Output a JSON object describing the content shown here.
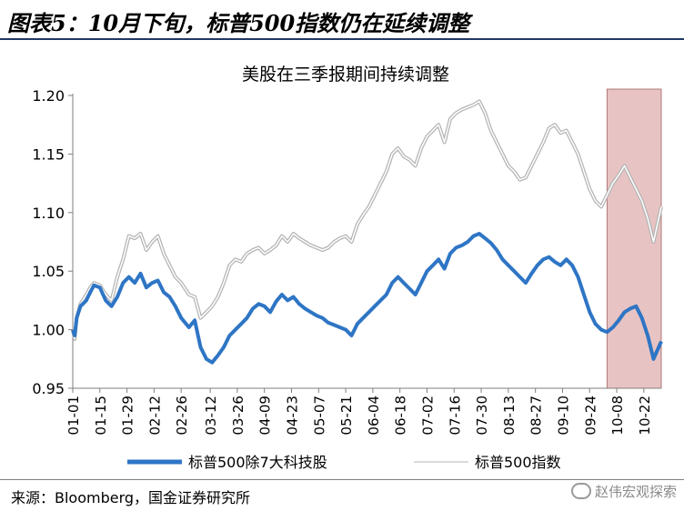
{
  "figure_title": "图表5：10月下旬，标普500指数仍在延续调整",
  "source": "来源：Bloomberg，国金证券研究所",
  "watermark": "赵伟宏观探索",
  "chart_data": {
    "type": "line",
    "title": "美股在三季报期间持续调整",
    "xlabel": "",
    "ylabel": "",
    "ylim": [
      0.95,
      1.2
    ],
    "yticks": [
      0.95,
      1.0,
      1.05,
      1.1,
      1.15,
      1.2
    ],
    "ytick_labels": [
      "0.95",
      "1.00",
      "1.05",
      "1.10",
      "1.15",
      "1.20"
    ],
    "x_tick_labels": [
      "01-01",
      "01-15",
      "01-29",
      "02-12",
      "02-26",
      "03-12",
      "03-26",
      "04-09",
      "04-23",
      "05-07",
      "05-21",
      "06-04",
      "06-18",
      "07-02",
      "07-16",
      "07-30",
      "08-13",
      "08-27",
      "09-10",
      "09-24",
      "10-08",
      "10-22"
    ],
    "x_start": "01-01",
    "x_end": "10-31",
    "highlight": {
      "from": "10-03",
      "to": "10-31",
      "color": "#e8c3c3"
    },
    "legend_position": "bottom",
    "grid": false,
    "series": [
      {
        "name": "标普500除7大科技股",
        "color": "#2e75c5",
        "x": [
          "01-01",
          "01-02",
          "01-03",
          "01-05",
          "01-08",
          "01-10",
          "01-12",
          "01-15",
          "01-18",
          "01-21",
          "01-24",
          "01-27",
          "01-30",
          "02-02",
          "02-05",
          "02-08",
          "02-11",
          "02-14",
          "02-17",
          "02-20",
          "02-23",
          "02-26",
          "03-01",
          "03-04",
          "03-07",
          "03-10",
          "03-13",
          "03-16",
          "03-19",
          "03-22",
          "03-25",
          "03-28",
          "03-31",
          "04-03",
          "04-06",
          "04-09",
          "04-12",
          "04-15",
          "04-18",
          "04-21",
          "04-24",
          "04-27",
          "04-30",
          "05-03",
          "05-06",
          "05-09",
          "05-12",
          "05-15",
          "05-18",
          "05-21",
          "05-24",
          "05-27",
          "05-30",
          "06-02",
          "06-05",
          "06-08",
          "06-11",
          "06-14",
          "06-17",
          "06-20",
          "06-23",
          "06-26",
          "06-29",
          "07-02",
          "07-05",
          "07-08",
          "07-11",
          "07-14",
          "07-17",
          "07-20",
          "07-23",
          "07-26",
          "07-29",
          "08-01",
          "08-04",
          "08-07",
          "08-10",
          "08-13",
          "08-16",
          "08-19",
          "08-22",
          "08-25",
          "08-28",
          "08-31",
          "09-03",
          "09-06",
          "09-09",
          "09-12",
          "09-15",
          "09-18",
          "09-21",
          "09-24",
          "09-27",
          "09-30",
          "10-03",
          "10-06",
          "10-09",
          "10-12",
          "10-15",
          "10-18",
          "10-21",
          "10-24",
          "10-27",
          "10-31"
        ],
        "values": [
          1.0,
          0.995,
          1.01,
          1.02,
          1.025,
          1.032,
          1.038,
          1.036,
          1.025,
          1.02,
          1.028,
          1.04,
          1.045,
          1.04,
          1.048,
          1.036,
          1.04,
          1.042,
          1.032,
          1.028,
          1.02,
          1.01,
          1.002,
          1.008,
          0.985,
          0.975,
          0.972,
          0.978,
          0.985,
          0.995,
          1.0,
          1.005,
          1.01,
          1.018,
          1.022,
          1.02,
          1.015,
          1.024,
          1.03,
          1.025,
          1.028,
          1.022,
          1.018,
          1.015,
          1.012,
          1.01,
          1.006,
          1.004,
          1.002,
          1.0,
          0.995,
          1.005,
          1.01,
          1.015,
          1.02,
          1.025,
          1.03,
          1.04,
          1.045,
          1.04,
          1.035,
          1.03,
          1.04,
          1.05,
          1.055,
          1.06,
          1.052,
          1.065,
          1.07,
          1.072,
          1.075,
          1.08,
          1.082,
          1.078,
          1.074,
          1.068,
          1.06,
          1.055,
          1.05,
          1.045,
          1.04,
          1.048,
          1.055,
          1.06,
          1.062,
          1.058,
          1.055,
          1.06,
          1.055,
          1.045,
          1.03,
          1.015,
          1.005,
          1.0,
          0.998,
          1.002,
          1.008,
          1.015,
          1.018,
          1.02,
          1.01,
          0.995,
          0.975,
          0.99
        ]
      },
      {
        "name": "标普500指数",
        "color": "#b4b4b4",
        "x": [
          "01-01",
          "01-02",
          "01-03",
          "01-05",
          "01-08",
          "01-10",
          "01-12",
          "01-15",
          "01-18",
          "01-21",
          "01-24",
          "01-27",
          "01-30",
          "02-02",
          "02-05",
          "02-08",
          "02-11",
          "02-14",
          "02-17",
          "02-20",
          "02-23",
          "02-26",
          "03-01",
          "03-04",
          "03-07",
          "03-10",
          "03-13",
          "03-16",
          "03-19",
          "03-22",
          "03-25",
          "03-28",
          "03-31",
          "04-03",
          "04-06",
          "04-09",
          "04-12",
          "04-15",
          "04-18",
          "04-21",
          "04-24",
          "04-27",
          "04-30",
          "05-03",
          "05-06",
          "05-09",
          "05-12",
          "05-15",
          "05-18",
          "05-21",
          "05-24",
          "05-27",
          "05-30",
          "06-02",
          "06-05",
          "06-08",
          "06-11",
          "06-14",
          "06-17",
          "06-20",
          "06-23",
          "06-26",
          "06-29",
          "07-02",
          "07-05",
          "07-08",
          "07-11",
          "07-14",
          "07-17",
          "07-20",
          "07-23",
          "07-26",
          "07-29",
          "08-01",
          "08-04",
          "08-07",
          "08-10",
          "08-13",
          "08-16",
          "08-19",
          "08-22",
          "08-25",
          "08-28",
          "08-31",
          "09-03",
          "09-06",
          "09-09",
          "09-12",
          "09-15",
          "09-18",
          "09-21",
          "09-24",
          "09-27",
          "09-30",
          "10-03",
          "10-06",
          "10-09",
          "10-12",
          "10-15",
          "10-18",
          "10-21",
          "10-24",
          "10-27",
          "10-31"
        ],
        "values": [
          1.0,
          0.992,
          1.01,
          1.022,
          1.03,
          1.036,
          1.04,
          1.038,
          1.03,
          1.025,
          1.045,
          1.06,
          1.08,
          1.078,
          1.082,
          1.068,
          1.075,
          1.08,
          1.065,
          1.055,
          1.045,
          1.04,
          1.03,
          1.028,
          1.01,
          1.015,
          1.02,
          1.028,
          1.04,
          1.055,
          1.06,
          1.058,
          1.065,
          1.068,
          1.07,
          1.065,
          1.068,
          1.072,
          1.08,
          1.075,
          1.082,
          1.078,
          1.075,
          1.072,
          1.07,
          1.068,
          1.07,
          1.075,
          1.078,
          1.08,
          1.075,
          1.09,
          1.098,
          1.105,
          1.115,
          1.125,
          1.135,
          1.15,
          1.155,
          1.148,
          1.145,
          1.14,
          1.155,
          1.165,
          1.17,
          1.175,
          1.16,
          1.18,
          1.185,
          1.188,
          1.19,
          1.192,
          1.195,
          1.185,
          1.17,
          1.16,
          1.15,
          1.14,
          1.135,
          1.128,
          1.13,
          1.14,
          1.15,
          1.16,
          1.172,
          1.175,
          1.168,
          1.17,
          1.16,
          1.15,
          1.135,
          1.12,
          1.11,
          1.105,
          1.115,
          1.125,
          1.132,
          1.14,
          1.13,
          1.12,
          1.11,
          1.095,
          1.075,
          1.105
        ]
      }
    ]
  }
}
